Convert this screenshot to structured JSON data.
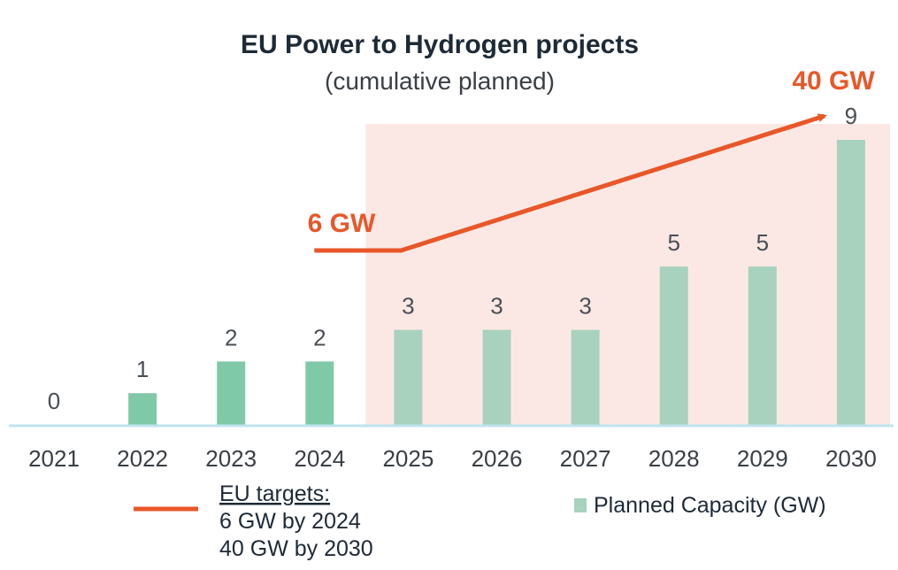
{
  "chart_data": {
    "type": "bar",
    "title": "EU Power to Hydrogen projects",
    "subtitle": "(cumulative planned)",
    "categories": [
      "2021",
      "2022",
      "2023",
      "2024",
      "2025",
      "2026",
      "2027",
      "2028",
      "2029",
      "2030"
    ],
    "series": [
      {
        "name": "Planned Capacity (GW)",
        "values": [
          0,
          1,
          2,
          2,
          3,
          3,
          3,
          5,
          5,
          9
        ]
      }
    ],
    "ylim": [
      0,
      9
    ],
    "grid": false,
    "shaded_from_category": "2025",
    "target_line": {
      "from": "2024",
      "to": "2030"
    },
    "annotations": {
      "target_2024": "6 GW",
      "target_2030": "40 GW"
    },
    "legend": {
      "placement": "bottom",
      "line_title": "EU targets:",
      "line_items": [
        "6 GW by 2024",
        "40 GW by 2030"
      ],
      "bar_label": "Planned Capacity (GW)"
    },
    "colors": {
      "bar_actual": "#7fc8a8",
      "bar_shaded": "#a8d2bd",
      "shade": "#fbe8e4",
      "target": "#e8572a",
      "axis": "#bfe3ee"
    }
  }
}
